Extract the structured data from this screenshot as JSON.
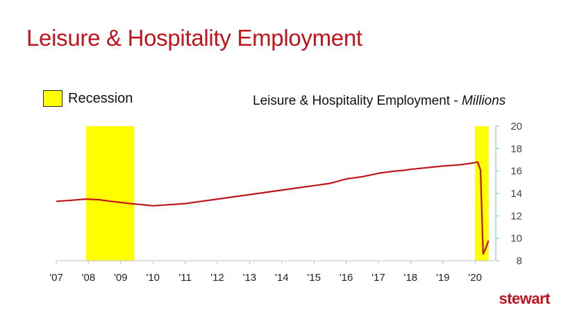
{
  "slide": {
    "title": "Leisure & Hospitality Employment",
    "brand": "stewart"
  },
  "legend": {
    "label": "Recession",
    "swatch_color": "#ffff00"
  },
  "chart_title": {
    "main": "Leisure & Hospitality Employment - ",
    "unit": "Millions"
  },
  "colors": {
    "line": "#c0141c",
    "recession": "#ffff00",
    "axis": "#9fd4dc",
    "title": "#c0141c"
  },
  "chart_data": {
    "type": "line",
    "title": "Leisure & Hospitality Employment - Millions",
    "xlabel": "",
    "ylabel": "",
    "xlim": [
      2007.0,
      2020.6
    ],
    "ylim": [
      8,
      20
    ],
    "y_axis_position": "right",
    "x_ticks": [
      {
        "label": "'07",
        "value": 2007
      },
      {
        "label": "'08",
        "value": 2008
      },
      {
        "label": "'09",
        "value": 2009
      },
      {
        "label": "'10",
        "value": 2010
      },
      {
        "label": "'11",
        "value": 2011
      },
      {
        "label": "'12",
        "value": 2012
      },
      {
        "label": "'13",
        "value": 2013
      },
      {
        "label": "'14",
        "value": 2014
      },
      {
        "label": "'15",
        "value": 2015
      },
      {
        "label": "'16",
        "value": 2016
      },
      {
        "label": "'17",
        "value": 2017
      },
      {
        "label": "'18",
        "value": 2018
      },
      {
        "label": "'19",
        "value": 2019
      },
      {
        "label": "'20",
        "value": 2020
      }
    ],
    "y_ticks": [
      "8",
      "10",
      "12",
      "14",
      "16",
      "18",
      "20"
    ],
    "recessions": [
      {
        "start": 2007.92,
        "end": 2009.42
      },
      {
        "start": 2020.0,
        "end": 2020.42
      }
    ],
    "series": [
      {
        "name": "Leisure & Hospitality Employment",
        "x": [
          2007.0,
          2007.5,
          2007.9,
          2008.3,
          2008.7,
          2009.0,
          2009.3,
          2009.7,
          2010.0,
          2010.5,
          2011.0,
          2011.5,
          2012.0,
          2012.5,
          2013.0,
          2013.5,
          2014.0,
          2014.5,
          2015.0,
          2015.5,
          2016.0,
          2016.5,
          2017.0,
          2017.5,
          2017.75,
          2018.0,
          2018.5,
          2019.0,
          2019.5,
          2019.9,
          2020.08,
          2020.17,
          2020.25,
          2020.33,
          2020.42
        ],
        "values": [
          13.3,
          13.4,
          13.5,
          13.45,
          13.3,
          13.2,
          13.1,
          13.0,
          12.9,
          13.0,
          13.1,
          13.3,
          13.5,
          13.7,
          13.9,
          14.1,
          14.3,
          14.5,
          14.7,
          14.9,
          15.3,
          15.5,
          15.8,
          16.0,
          16.05,
          16.15,
          16.3,
          16.45,
          16.55,
          16.7,
          16.8,
          16.1,
          8.6,
          9.1,
          9.8
        ]
      }
    ]
  }
}
